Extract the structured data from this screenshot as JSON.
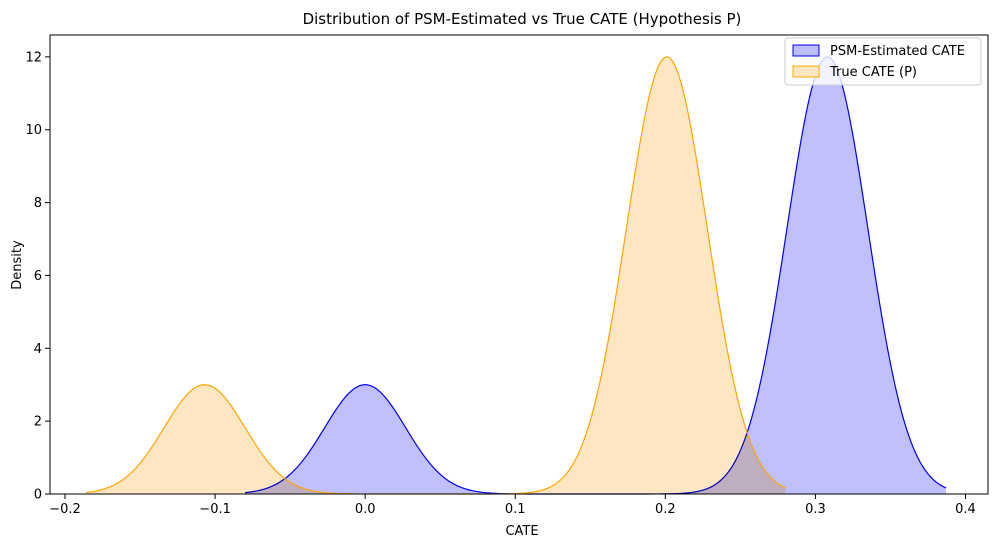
{
  "chart_data": {
    "type": "area",
    "title": "Distribution of PSM-Estimated vs True CATE (Hypothesis P)",
    "xlabel": "CATE",
    "ylabel": "Density",
    "xlim": [
      -0.21,
      0.415
    ],
    "ylim": [
      0,
      12.6
    ],
    "xticks": [
      -0.2,
      -0.1,
      0.0,
      0.1,
      0.2,
      0.3,
      0.4
    ],
    "xtick_labels": [
      "−0.2",
      "−0.1",
      "0.0",
      "0.1",
      "0.2",
      "0.3",
      "0.4"
    ],
    "yticks": [
      0,
      2,
      4,
      6,
      8,
      10,
      12
    ],
    "ytick_labels": [
      "0",
      "2",
      "4",
      "6",
      "8",
      "10",
      "12"
    ],
    "grid": false,
    "legend_position": "top-right",
    "series": [
      {
        "name": "PSM-Estimated CATE",
        "color": "#0000ff",
        "fill": "#bdbdfc",
        "x_range": [
          -0.08,
          0.387
        ],
        "components": [
          {
            "mean": 0.0,
            "sd": 0.027,
            "peak": 3.0
          },
          {
            "mean": 0.308,
            "sd": 0.027,
            "peak": 12.0
          }
        ]
      },
      {
        "name": "True CATE (P)",
        "color": "#ffa500",
        "fill": "#fde6bf",
        "x_range": [
          -0.186,
          0.28
        ],
        "components": [
          {
            "mean": -0.107,
            "sd": 0.027,
            "peak": 3.0
          },
          {
            "mean": 0.201,
            "sd": 0.027,
            "peak": 12.0
          }
        ]
      }
    ]
  }
}
